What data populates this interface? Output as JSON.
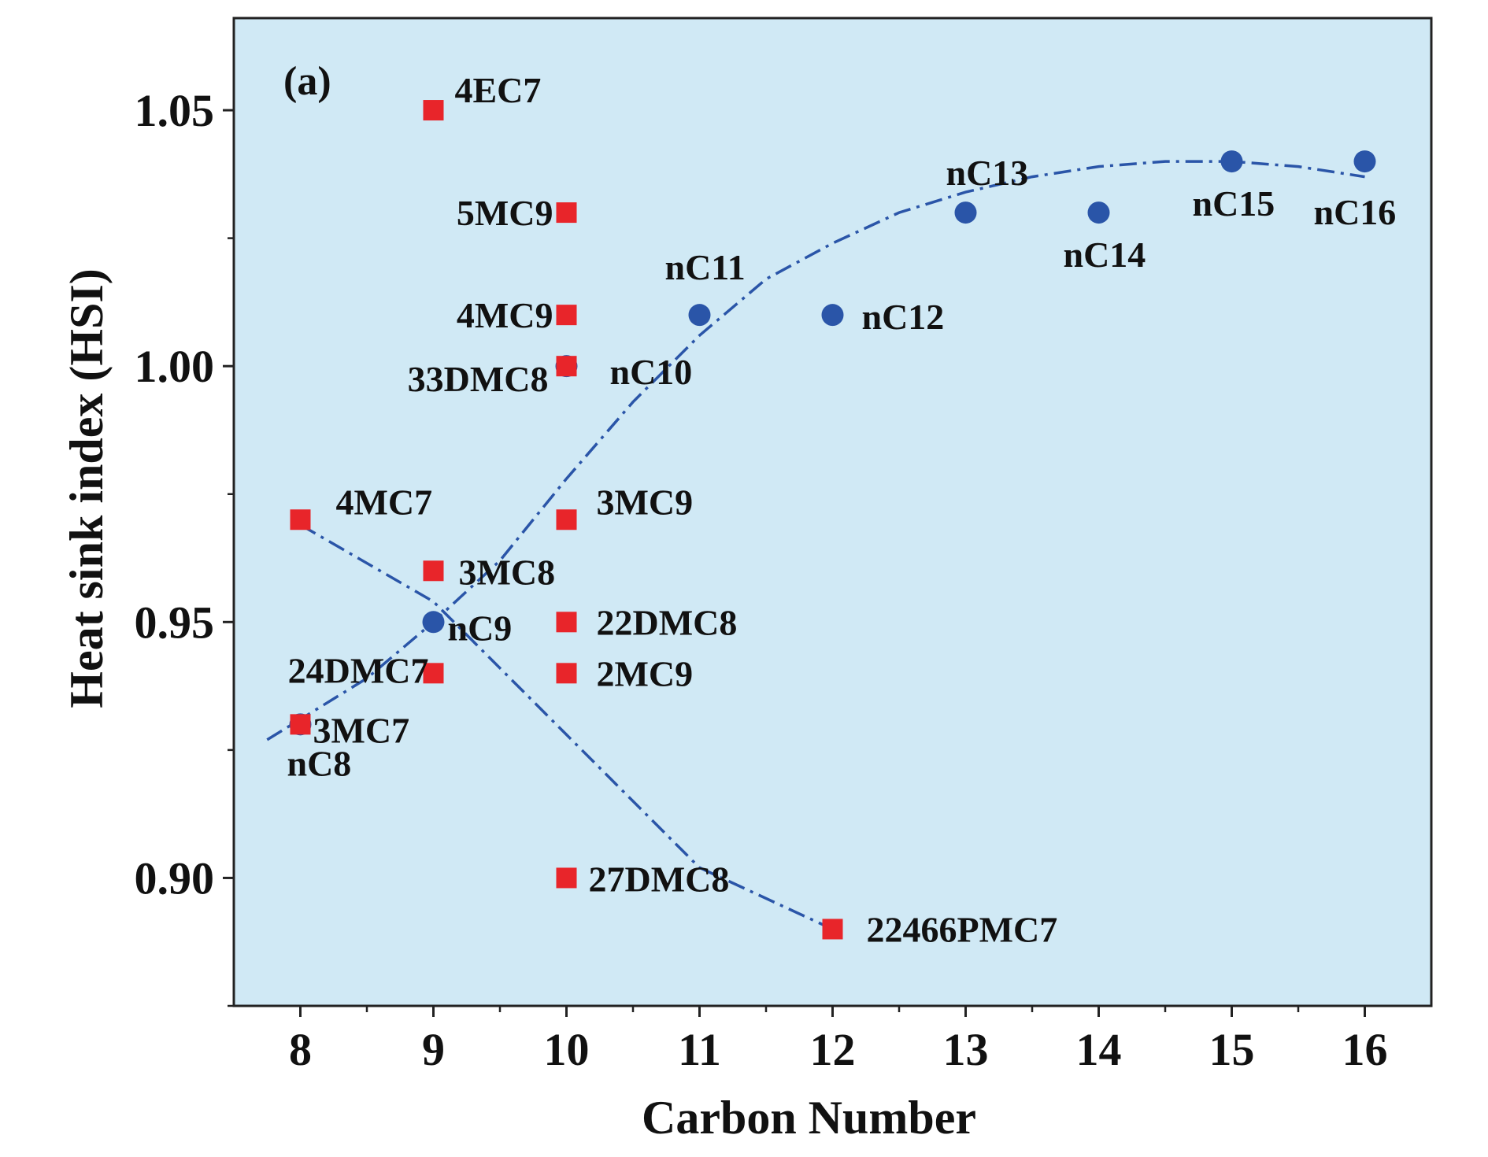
{
  "chart_data": {
    "type": "scatter",
    "panel_label": "(a)",
    "title": "",
    "xlabel": "Carbon Number",
    "ylabel": "Heat sink index (HSI)",
    "xlim": [
      7.5,
      16.5
    ],
    "ylim": [
      0.875,
      1.068
    ],
    "xticks": [
      8,
      9,
      10,
      11,
      12,
      13,
      14,
      15,
      16
    ],
    "yticks": [
      0.9,
      0.95,
      1.0,
      1.05
    ],
    "ytick_labels": [
      "0.90",
      "0.95",
      "1.00",
      "1.05"
    ],
    "background_color": "#d0e9f5",
    "grid": false,
    "legend": "none",
    "series": [
      {
        "marker": "circle",
        "color": "#2a55a8",
        "points": [
          {
            "label": "nC8",
            "x": 8,
            "y": 0.93
          },
          {
            "label": "nC9",
            "x": 9,
            "y": 0.95
          },
          {
            "label": "nC10",
            "x": 10,
            "y": 1.0
          },
          {
            "label": "nC11",
            "x": 11,
            "y": 1.01
          },
          {
            "label": "nC12",
            "x": 12,
            "y": 1.01
          },
          {
            "label": "nC13",
            "x": 13,
            "y": 1.03
          },
          {
            "label": "nC14",
            "x": 14,
            "y": 1.03
          },
          {
            "label": "nC15",
            "x": 15,
            "y": 1.04
          },
          {
            "label": "nC16",
            "x": 16,
            "y": 1.04
          }
        ]
      },
      {
        "marker": "square",
        "color": "#e8252a",
        "points": [
          {
            "label": "4EC7",
            "x": 9,
            "y": 1.05
          },
          {
            "label": "5MC9",
            "x": 10,
            "y": 1.03
          },
          {
            "label": "4MC9",
            "x": 10,
            "y": 1.01
          },
          {
            "label": "33DMC8",
            "x": 10,
            "y": 1.0
          },
          {
            "label": "4MC7",
            "x": 8,
            "y": 0.97
          },
          {
            "label": "3MC9",
            "x": 10,
            "y": 0.97
          },
          {
            "label": "3MC8",
            "x": 9,
            "y": 0.96
          },
          {
            "label": "22DMC8",
            "x": 10,
            "y": 0.95
          },
          {
            "label": "24DMC7",
            "x": 9,
            "y": 0.94
          },
          {
            "label": "2MC9",
            "x": 10,
            "y": 0.94
          },
          {
            "label": "3MC7",
            "x": 8,
            "y": 0.93
          },
          {
            "label": "27DMC8",
            "x": 10,
            "y": 0.9
          },
          {
            "label": "22466PMC7",
            "x": 12,
            "y": 0.89
          }
        ]
      }
    ],
    "trend_lines": [
      {
        "style": "dash-dot",
        "color": "#2a55a8",
        "points": [
          [
            7.75,
            0.927
          ],
          [
            8.5,
            0.939
          ],
          [
            9,
            0.95
          ],
          [
            9.5,
            0.962
          ],
          [
            10,
            0.978
          ],
          [
            10.5,
            0.993
          ],
          [
            11,
            1.006
          ],
          [
            11.5,
            1.017
          ],
          [
            12,
            1.024
          ],
          [
            12.5,
            1.03
          ],
          [
            13,
            1.034
          ],
          [
            13.5,
            1.037
          ],
          [
            14,
            1.039
          ],
          [
            14.5,
            1.04
          ],
          [
            15,
            1.04
          ],
          [
            15.5,
            1.039
          ],
          [
            16,
            1.037
          ]
        ]
      },
      {
        "style": "dash-dot",
        "color": "#2a55a8",
        "points": [
          [
            8,
            0.969
          ],
          [
            9,
            0.954
          ],
          [
            10,
            0.928
          ],
          [
            11,
            0.902
          ],
          [
            12,
            0.89
          ]
        ]
      }
    ]
  }
}
